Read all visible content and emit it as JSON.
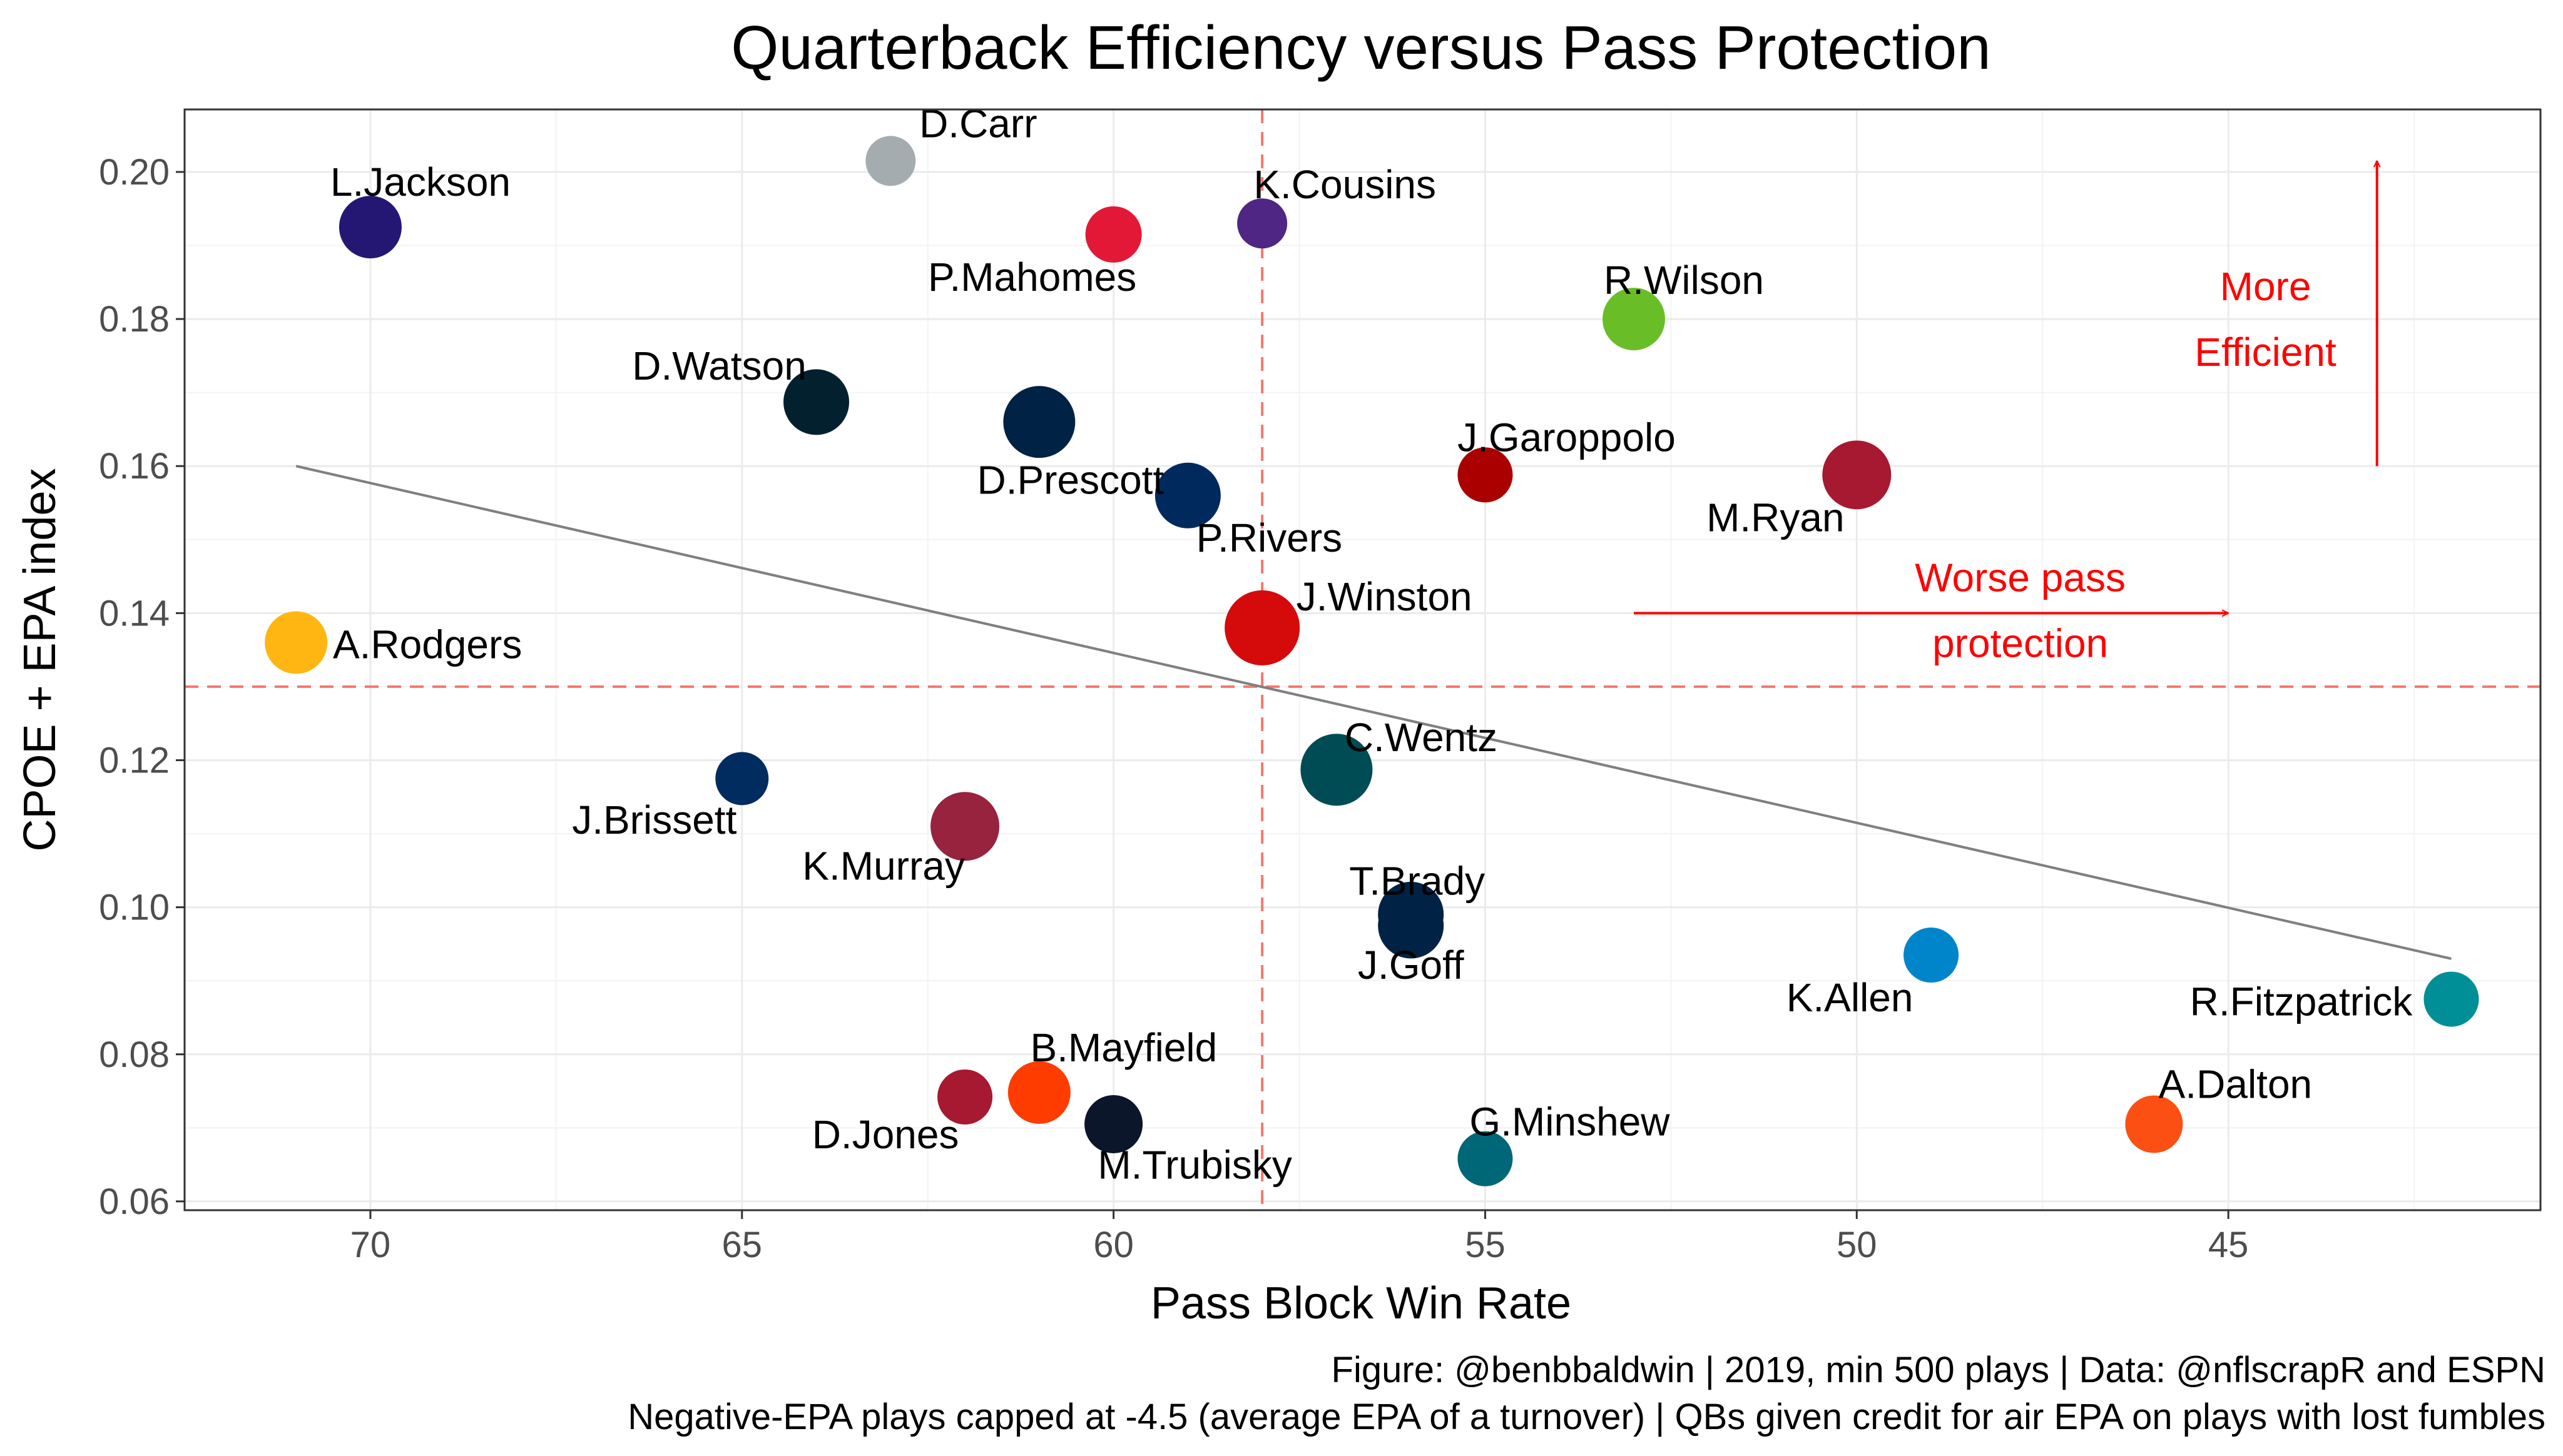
{
  "chart_data": {
    "type": "scatter",
    "title": "Quarterback Efficiency versus Pass Protection",
    "xlabel": "Pass Block Win Rate",
    "ylabel": "CPOE + EPA index",
    "xlim": [
      72.5,
      40.8
    ],
    "x_reversed": true,
    "ylim": [
      0.0588,
      0.2085
    ],
    "x_ticks": [
      70,
      65,
      60,
      55,
      50,
      45
    ],
    "y_ticks": [
      "0.06",
      "0.08",
      "0.10",
      "0.12",
      "0.14",
      "0.16",
      "0.18",
      "0.20"
    ],
    "grid": true,
    "reference_lines": {
      "x": 58,
      "y": 0.13,
      "color": "#f8766d",
      "style": "dashed"
    },
    "trend_line": {
      "x": [
        71,
        42
      ],
      "y": [
        0.16,
        0.093
      ],
      "color": "#7f7f7f"
    },
    "points": [
      {
        "name": "L.Jackson",
        "x": 70,
        "y": 0.1925,
        "size": 1.0,
        "color": "#241773"
      },
      {
        "name": "D.Carr",
        "x": 63,
        "y": 0.2015,
        "size": 0.8,
        "color": "#a5acaf"
      },
      {
        "name": "P.Mahomes",
        "x": 60,
        "y": 0.1915,
        "size": 0.9,
        "color": "#e31837"
      },
      {
        "name": "K.Cousins",
        "x": 58,
        "y": 0.193,
        "size": 0.8,
        "color": "#4f2683"
      },
      {
        "name": "R.Wilson",
        "x": 53,
        "y": 0.18,
        "size": 1.0,
        "color": "#69be28"
      },
      {
        "name": "D.Watson",
        "x": 64,
        "y": 0.1687,
        "size": 1.05,
        "color": "#03202f"
      },
      {
        "name": "D.Prescott",
        "x": 61,
        "y": 0.166,
        "size": 1.15,
        "color": "#002244"
      },
      {
        "name": "J.Garoppolo",
        "x": 55,
        "y": 0.1588,
        "size": 0.88,
        "color": "#aa0000"
      },
      {
        "name": "M.Ryan",
        "x": 50,
        "y": 0.1588,
        "size": 1.1,
        "color": "#a71930"
      },
      {
        "name": "P.Rivers",
        "x": 59,
        "y": 0.156,
        "size": 1.05,
        "color": "#002a5e"
      },
      {
        "name": "J.Winston",
        "x": 58,
        "y": 0.138,
        "size": 1.2,
        "color": "#d50a0a"
      },
      {
        "name": "A.Rodgers",
        "x": 71,
        "y": 0.136,
        "size": 1.0,
        "color": "#ffb612"
      },
      {
        "name": "C.Wentz",
        "x": 57,
        "y": 0.1187,
        "size": 1.15,
        "color": "#004c54"
      },
      {
        "name": "J.Brissett",
        "x": 65,
        "y": 0.1175,
        "size": 0.85,
        "color": "#002c5f"
      },
      {
        "name": "K.Murray",
        "x": 62,
        "y": 0.111,
        "size": 1.1,
        "color": "#97233f"
      },
      {
        "name": "T.Brady",
        "x": 56,
        "y": 0.099,
        "size": 1.05,
        "color": "#002244"
      },
      {
        "name": "J.Goff",
        "x": 56,
        "y": 0.0975,
        "size": 1.05,
        "color": "#002244"
      },
      {
        "name": "K.Allen",
        "x": 49,
        "y": 0.0935,
        "size": 0.88,
        "color": "#0085ca"
      },
      {
        "name": "R.Fitzpatrick",
        "x": 42,
        "y": 0.0875,
        "size": 0.88,
        "color": "#008e97"
      },
      {
        "name": "B.Mayfield",
        "x": 61,
        "y": 0.0748,
        "size": 1.0,
        "color": "#ff3c00"
      },
      {
        "name": "D.Jones",
        "x": 62,
        "y": 0.0742,
        "size": 0.88,
        "color": "#a71930"
      },
      {
        "name": "M.Trubisky",
        "x": 60,
        "y": 0.0705,
        "size": 0.93,
        "color": "#0b162a"
      },
      {
        "name": "A.Dalton",
        "x": 46,
        "y": 0.0705,
        "size": 0.92,
        "color": "#fb4f14"
      },
      {
        "name": "G.Minshew",
        "x": 55,
        "y": 0.0658,
        "size": 0.88,
        "color": "#006778"
      }
    ],
    "annotations": [
      {
        "lines": [
          "More",
          "Efficient"
        ],
        "color": "#ff0000",
        "arrow": "up"
      },
      {
        "lines": [
          "Worse pass",
          "protection"
        ],
        "color": "#ff0000",
        "arrow": "right"
      }
    ]
  },
  "caption": {
    "line1": "Figure: @benbbaldwin | 2019, min 500 plays | Data: @nflscrapR and ESPN",
    "line2": "Negative-EPA plays capped at -4.5 (average EPA of a turnover) | QBs given credit for air EPA on plays with lost fumbles"
  }
}
